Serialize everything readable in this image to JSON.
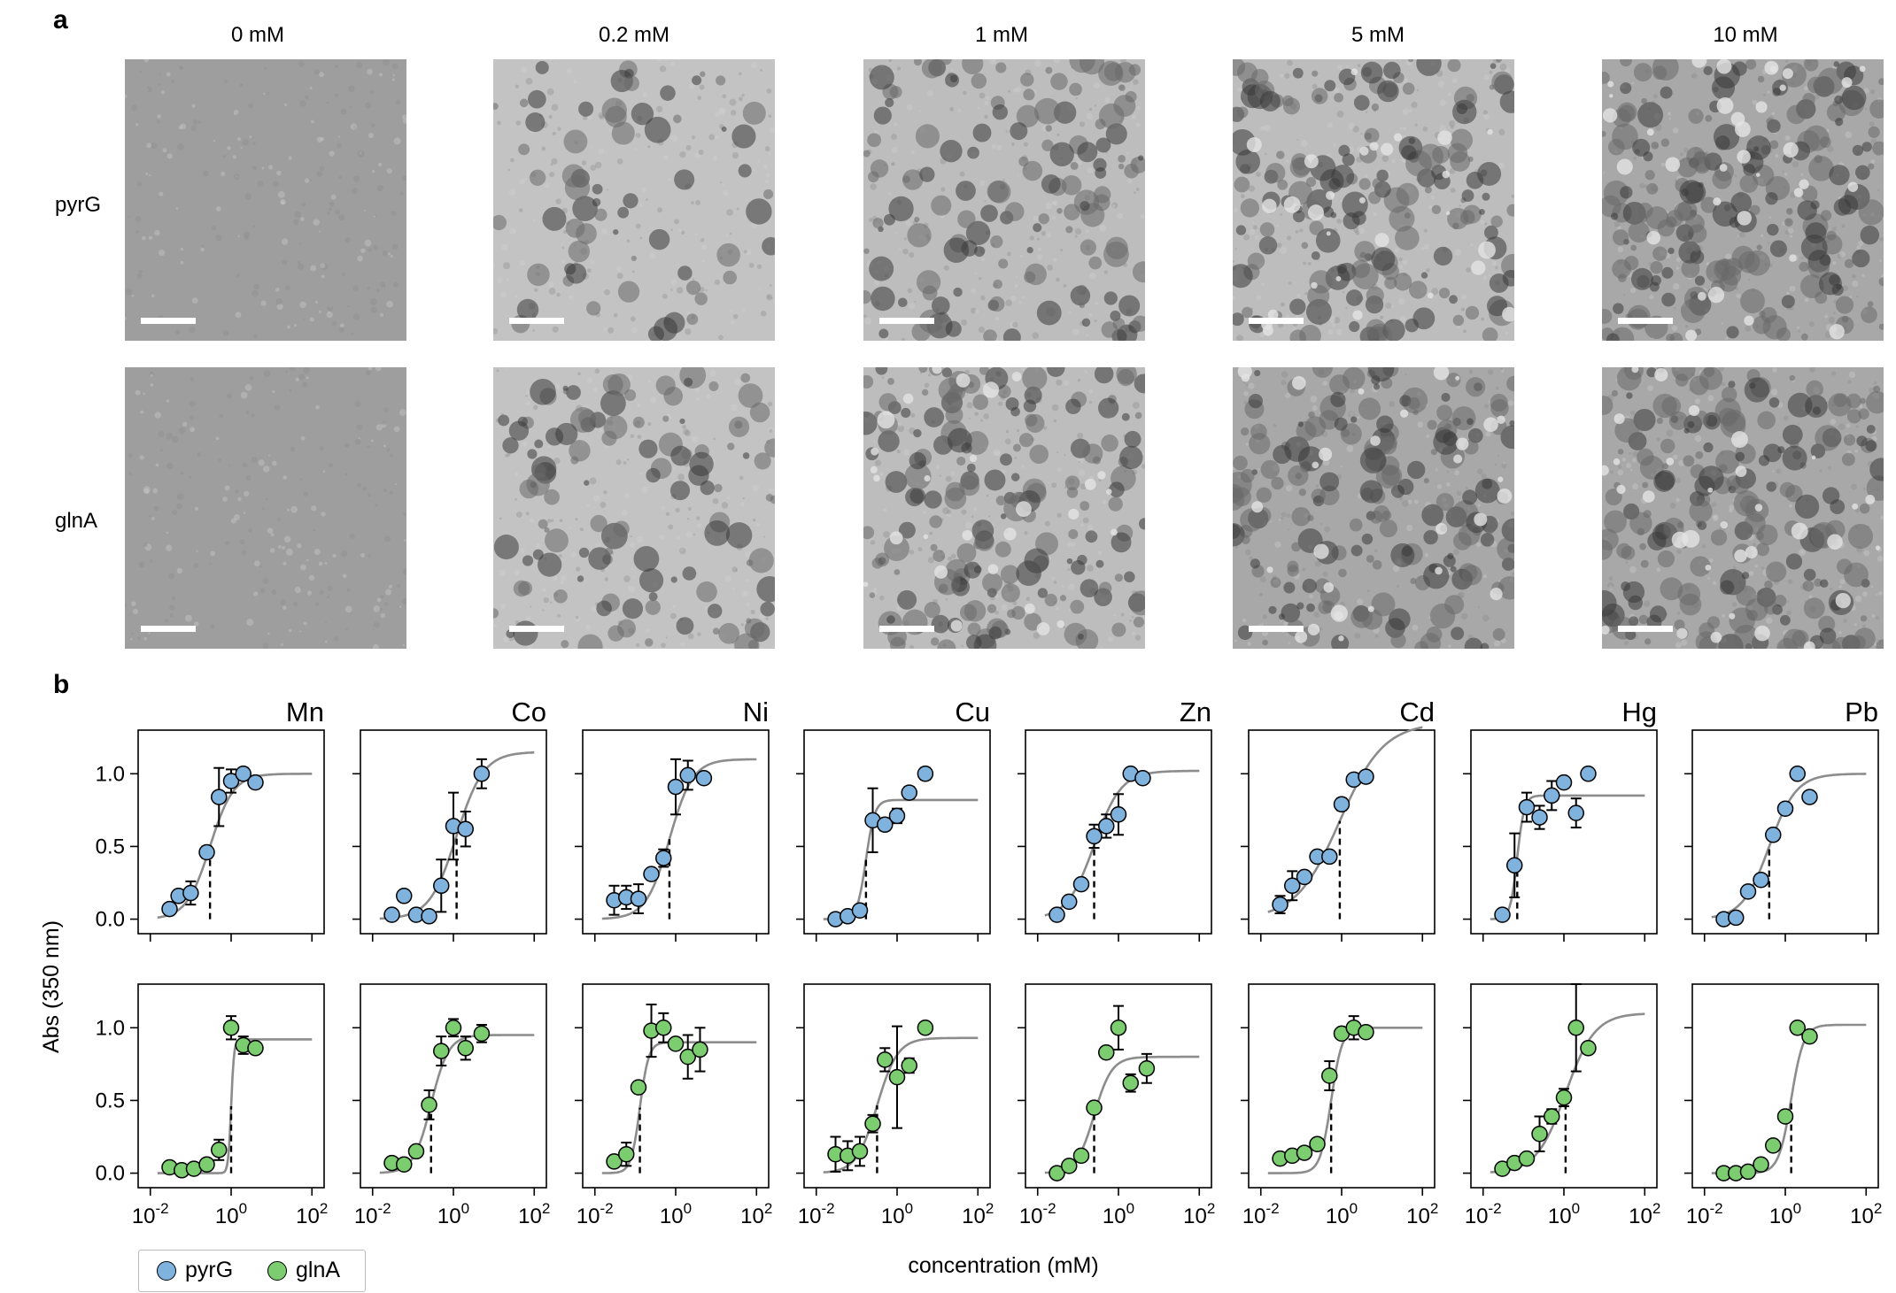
{
  "figure": {
    "panel_a_label": "a",
    "panel_b_label": "b",
    "concentrations": [
      "0 mM",
      "0.2 mM",
      "1 mM",
      "5 mM",
      "10 mM"
    ],
    "rows": [
      "pyrG",
      "glnA"
    ],
    "y_axis_label": "Abs (350 nm)",
    "x_axis_label": "concentration (mM)",
    "legend": [
      {
        "label": "pyrG",
        "color": "#7fb2dd"
      },
      {
        "label": "glnA",
        "color": "#7ccd70"
      }
    ],
    "colors": {
      "pyrG": "#7fb2dd",
      "glnA": "#7ccd70",
      "fit": "#8c8c8c"
    }
  },
  "chart_data": {
    "type": "scatter",
    "x_scale": "log",
    "xlim": [
      0.005,
      200
    ],
    "ylim": [
      -0.1,
      1.3
    ],
    "x_ticks": [
      0.01,
      1,
      100
    ],
    "x_tick_labels": [
      [
        "10",
        "-2"
      ],
      [
        "10",
        "0"
      ],
      [
        "10",
        "2"
      ]
    ],
    "y_ticks": [
      0,
      0.5,
      1
    ],
    "y_tick_labels": [
      "0.0",
      "0.5",
      "1.0"
    ],
    "metals": [
      "Mn",
      "Co",
      "Ni",
      "Cu",
      "Zn",
      "Cd",
      "Hg",
      "Pb"
    ],
    "series": [
      {
        "name": "pyrG",
        "panels": [
          {
            "metal": "Mn",
            "points": [
              [
                0.03,
                0.07,
                0
              ],
              [
                0.05,
                0.16,
                0
              ],
              [
                0.1,
                0.18,
                0.08
              ],
              [
                0.25,
                0.46,
                0.04
              ],
              [
                0.5,
                0.84,
                0.2
              ],
              [
                1,
                0.95,
                0.08
              ],
              [
                2,
                1.0,
                0.04
              ],
              [
                4,
                0.94,
                0
              ]
            ],
            "fit": {
              "bottom": 0,
              "top": 1.0,
              "ec50": 0.3,
              "hill": 1.5
            }
          },
          {
            "metal": "Co",
            "points": [
              [
                0.03,
                0.03,
                0
              ],
              [
                0.06,
                0.16,
                0
              ],
              [
                0.12,
                0.03,
                0
              ],
              [
                0.25,
                0.02,
                0
              ],
              [
                0.5,
                0.23,
                0.18
              ],
              [
                1,
                0.64,
                0.23
              ],
              [
                2,
                0.62,
                0.12
              ],
              [
                5,
                1.0,
                0.1
              ]
            ],
            "fit": {
              "bottom": 0,
              "top": 1.15,
              "ec50": 1.2,
              "hill": 1.3
            }
          },
          {
            "metal": "Ni",
            "points": [
              [
                0.03,
                0.13,
                0.1
              ],
              [
                0.06,
                0.15,
                0.08
              ],
              [
                0.12,
                0.14,
                0.1
              ],
              [
                0.25,
                0.31,
                0.03
              ],
              [
                0.5,
                0.42,
                0.06
              ],
              [
                1,
                0.91,
                0.19
              ],
              [
                2,
                0.99,
                0.1
              ],
              [
                5,
                0.97,
                0
              ]
            ],
            "fit": {
              "bottom": 0,
              "top": 1.1,
              "ec50": 0.7,
              "hill": 1.5
            }
          },
          {
            "metal": "Cu",
            "points": [
              [
                0.03,
                0.0,
                0
              ],
              [
                0.06,
                0.02,
                0
              ],
              [
                0.12,
                0.06,
                0
              ],
              [
                0.25,
                0.68,
                0.22
              ],
              [
                0.5,
                0.65,
                0.04
              ],
              [
                1,
                0.71,
                0.05
              ],
              [
                2,
                0.87,
                0.04
              ],
              [
                5,
                1.0,
                0.04
              ]
            ],
            "fit": {
              "bottom": 0,
              "top": 0.82,
              "ec50": 0.17,
              "hill": 4
            }
          },
          {
            "metal": "Zn",
            "points": [
              [
                0.03,
                0.03,
                0
              ],
              [
                0.06,
                0.12,
                0
              ],
              [
                0.12,
                0.24,
                0
              ],
              [
                0.25,
                0.57,
                0.08
              ],
              [
                0.5,
                0.64,
                0.08
              ],
              [
                1,
                0.72,
                0.14
              ],
              [
                2,
                1.0,
                0
              ],
              [
                4,
                0.97,
                0
              ]
            ],
            "fit": {
              "bottom": 0,
              "top": 1.02,
              "ec50": 0.25,
              "hill": 1.3
            }
          },
          {
            "metal": "Cd",
            "points": [
              [
                0.03,
                0.1,
                0.06
              ],
              [
                0.06,
                0.23,
                0.1
              ],
              [
                0.12,
                0.29,
                0
              ],
              [
                0.25,
                0.43,
                0
              ],
              [
                0.5,
                0.43,
                0
              ],
              [
                1,
                0.79,
                0.04
              ],
              [
                2,
                0.96,
                0
              ],
              [
                4,
                0.98,
                0
              ]
            ],
            "fit": {
              "bottom": 0,
              "top": 1.35,
              "ec50": 0.9,
              "hill": 0.8
            }
          },
          {
            "metal": "Hg",
            "points": [
              [
                0.03,
                0.03,
                0
              ],
              [
                0.06,
                0.37,
                0.22
              ],
              [
                0.12,
                0.77,
                0.1
              ],
              [
                0.25,
                0.7,
                0.08
              ],
              [
                0.5,
                0.85,
                0.1
              ],
              [
                1,
                0.94,
                0
              ],
              [
                2,
                0.73,
                0.1
              ],
              [
                4,
                1.0,
                0
              ]
            ],
            "fit": {
              "bottom": 0,
              "top": 0.85,
              "ec50": 0.07,
              "hill": 5
            }
          },
          {
            "metal": "Pb",
            "points": [
              [
                0.03,
                0.0,
                0
              ],
              [
                0.06,
                0.01,
                0
              ],
              [
                0.12,
                0.19,
                0
              ],
              [
                0.25,
                0.27,
                0
              ],
              [
                0.5,
                0.58,
                0
              ],
              [
                1,
                0.76,
                0
              ],
              [
                2,
                1.0,
                0
              ],
              [
                4,
                0.84,
                0
              ]
            ],
            "fit": {
              "bottom": 0,
              "top": 1.0,
              "ec50": 0.4,
              "hill": 1.3
            }
          }
        ]
      },
      {
        "name": "glnA",
        "panels": [
          {
            "metal": "Mn",
            "points": [
              [
                0.03,
                0.04,
                0
              ],
              [
                0.06,
                0.02,
                0
              ],
              [
                0.12,
                0.03,
                0
              ],
              [
                0.25,
                0.06,
                0
              ],
              [
                0.5,
                0.16,
                0.07
              ],
              [
                1,
                1.0,
                0.08
              ],
              [
                2,
                0.88,
                0.06
              ],
              [
                4,
                0.86,
                0
              ]
            ],
            "fit": {
              "bottom": 0,
              "top": 0.92,
              "ec50": 1.0,
              "hill": 12
            }
          },
          {
            "metal": "Co",
            "points": [
              [
                0.03,
                0.07,
                0
              ],
              [
                0.06,
                0.06,
                0
              ],
              [
                0.12,
                0.15,
                0
              ],
              [
                0.25,
                0.47,
                0.1
              ],
              [
                0.5,
                0.84,
                0.1
              ],
              [
                1,
                1.0,
                0.06
              ],
              [
                2,
                0.86,
                0.08
              ],
              [
                5,
                0.96,
                0.06
              ]
            ],
            "fit": {
              "bottom": 0,
              "top": 0.95,
              "ec50": 0.28,
              "hill": 2
            }
          },
          {
            "metal": "Ni",
            "points": [
              [
                0.03,
                0.08,
                0
              ],
              [
                0.06,
                0.13,
                0.08
              ],
              [
                0.12,
                0.59,
                0
              ],
              [
                0.25,
                0.98,
                0.18
              ],
              [
                0.5,
                1.0,
                0.1
              ],
              [
                1,
                0.89,
                0
              ],
              [
                2,
                0.8,
                0.15
              ],
              [
                4,
                0.85,
                0.15
              ]
            ],
            "fit": {
              "bottom": 0,
              "top": 0.9,
              "ec50": 0.13,
              "hill": 4
            }
          },
          {
            "metal": "Cu",
            "points": [
              [
                0.03,
                0.13,
                0.12
              ],
              [
                0.06,
                0.12,
                0.1
              ],
              [
                0.12,
                0.15,
                0.1
              ],
              [
                0.25,
                0.34,
                0.06
              ],
              [
                0.5,
                0.78,
                0.08
              ],
              [
                1,
                0.66,
                0.35
              ],
              [
                2,
                0.74,
                0.05
              ],
              [
                5,
                1.0,
                0
              ]
            ],
            "fit": {
              "bottom": 0,
              "top": 0.93,
              "ec50": 0.32,
              "hill": 1.7
            }
          },
          {
            "metal": "Zn",
            "points": [
              [
                0.03,
                0.0,
                0
              ],
              [
                0.06,
                0.05,
                0
              ],
              [
                0.12,
                0.12,
                0
              ],
              [
                0.25,
                0.45,
                0
              ],
              [
                0.5,
                0.83,
                0
              ],
              [
                1,
                1.0,
                0.15
              ],
              [
                2,
                0.62,
                0.06
              ],
              [
                5,
                0.72,
                0.1
              ]
            ],
            "fit": {
              "bottom": 0,
              "top": 0.8,
              "ec50": 0.25,
              "hill": 2
            }
          },
          {
            "metal": "Cd",
            "points": [
              [
                0.03,
                0.1,
                0
              ],
              [
                0.06,
                0.12,
                0
              ],
              [
                0.12,
                0.14,
                0
              ],
              [
                0.25,
                0.2,
                0
              ],
              [
                0.5,
                0.67,
                0.1
              ],
              [
                1,
                0.96,
                0
              ],
              [
                2,
                1.0,
                0.08
              ],
              [
                4,
                0.97,
                0
              ]
            ],
            "fit": {
              "bottom": 0,
              "top": 1.0,
              "ec50": 0.55,
              "hill": 3.2
            }
          },
          {
            "metal": "Hg",
            "points": [
              [
                0.03,
                0.03,
                0
              ],
              [
                0.06,
                0.07,
                0
              ],
              [
                0.12,
                0.1,
                0
              ],
              [
                0.25,
                0.27,
                0.12
              ],
              [
                0.5,
                0.39,
                0.05
              ],
              [
                1,
                0.52,
                0.06
              ],
              [
                2,
                1.0,
                0.3
              ],
              [
                4,
                0.86,
                0
              ]
            ],
            "fit": {
              "bottom": 0,
              "top": 1.1,
              "ec50": 1.1,
              "hill": 1.2
            }
          },
          {
            "metal": "Pb",
            "points": [
              [
                0.03,
                0.0,
                0
              ],
              [
                0.06,
                0.0,
                0
              ],
              [
                0.12,
                0.01,
                0
              ],
              [
                0.25,
                0.06,
                0
              ],
              [
                0.5,
                0.19,
                0
              ],
              [
                1,
                0.39,
                0
              ],
              [
                2,
                1.0,
                0
              ],
              [
                4,
                0.94,
                0
              ]
            ],
            "fit": {
              "bottom": 0,
              "top": 1.02,
              "ec50": 1.4,
              "hill": 2.8
            }
          }
        ]
      }
    ]
  }
}
